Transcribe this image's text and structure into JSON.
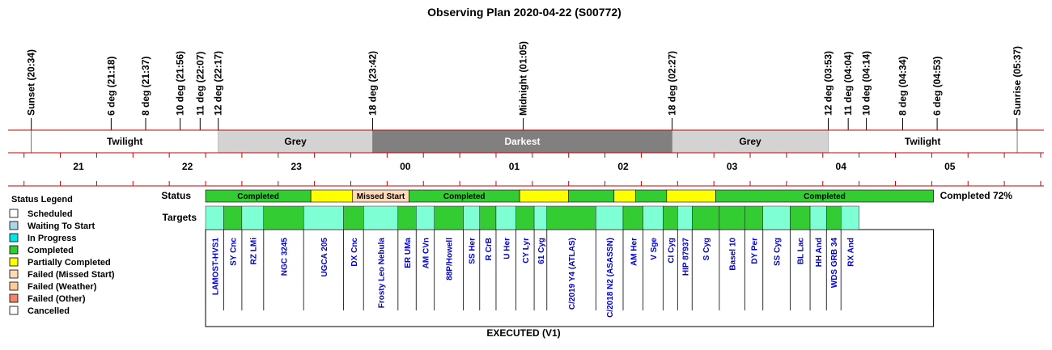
{
  "chart_data": {
    "type": "timeline",
    "title": "Observing Plan 2020-04-22 (S00772)",
    "events": [
      {
        "label": "Sunset (20:34)",
        "time": "20:34"
      },
      {
        "label": "6 deg (21:18)",
        "time": "21:18"
      },
      {
        "label": "8 deg (21:37)",
        "time": "21:37"
      },
      {
        "label": "10 deg (21:56)",
        "time": "21:56"
      },
      {
        "label": "11 deg (22:07)",
        "time": "22:07"
      },
      {
        "label": "12 deg (22:17)",
        "time": "22:17"
      },
      {
        "label": "18 deg (23:42)",
        "time": "23:42"
      },
      {
        "label": "Midnight (01:05)",
        "time": "01:05"
      },
      {
        "label": "18 deg (02:27)",
        "time": "02:27"
      },
      {
        "label": "12 deg (03:53)",
        "time": "03:53"
      },
      {
        "label": "11 deg (04:04)",
        "time": "04:04"
      },
      {
        "label": "10 deg (04:14)",
        "time": "04:14"
      },
      {
        "label": "8 deg (04:34)",
        "time": "04:34"
      },
      {
        "label": "6 deg (04:53)",
        "time": "04:53"
      },
      {
        "label": "Sunrise (05:37)",
        "time": "05:37"
      }
    ],
    "phases": [
      {
        "label": "Twilight",
        "start": "20:34",
        "end": "22:17",
        "color": "#ffffff"
      },
      {
        "label": "Grey",
        "start": "22:17",
        "end": "23:42",
        "color": "#d3d3d3"
      },
      {
        "label": "Darkest",
        "start": "23:42",
        "end": "02:27",
        "color": "#808080"
      },
      {
        "label": "Grey",
        "start": "02:27",
        "end": "03:53",
        "color": "#d3d3d3"
      },
      {
        "label": "Twilight",
        "start": "03:53",
        "end": "05:37",
        "color": "#ffffff"
      }
    ],
    "hour_ticks": [
      "21",
      "22",
      "23",
      "00",
      "01",
      "02",
      "03",
      "04",
      "05"
    ],
    "status_row_label": "Status",
    "targets_row_label": "Targets",
    "status_segments": [
      {
        "label": "Completed",
        "start": "22:10",
        "end": "23:08",
        "status": "Completed"
      },
      {
        "label": "",
        "start": "23:08",
        "end": "23:31",
        "status": "Partially Completed"
      },
      {
        "label": "Missed Start",
        "start": "23:31",
        "end": "00:02",
        "status": "Failed (Missed Start)"
      },
      {
        "label": "Completed",
        "start": "00:02",
        "end": "01:03",
        "status": "Completed"
      },
      {
        "label": "",
        "start": "01:03",
        "end": "01:30",
        "status": "Partially Completed"
      },
      {
        "label": "",
        "start": "01:30",
        "end": "01:55",
        "status": "Completed"
      },
      {
        "label": "",
        "start": "01:55",
        "end": "02:07",
        "status": "Partially Completed"
      },
      {
        "label": "",
        "start": "02:07",
        "end": "02:24",
        "status": "Completed"
      },
      {
        "label": "",
        "start": "02:24",
        "end": "02:51",
        "status": "Partially Completed"
      },
      {
        "label": "Completed",
        "start": "02:51",
        "end": "04:51",
        "status": "Completed"
      }
    ],
    "completion_text": "Completed 72%",
    "targets": [
      {
        "name": "LAMOST-HVS1",
        "start": "22:10",
        "end": "22:20",
        "status": "Waiting To Start"
      },
      {
        "name": "SY Cnc",
        "start": "22:20",
        "end": "22:30",
        "status": "Completed"
      },
      {
        "name": "RZ LMi",
        "start": "22:30",
        "end": "22:42",
        "status": "Waiting To Start"
      },
      {
        "name": "NGC 3245",
        "start": "22:42",
        "end": "23:04",
        "status": "Completed"
      },
      {
        "name": "UGCA 205",
        "start": "23:04",
        "end": "23:26",
        "status": "Waiting To Start"
      },
      {
        "name": "DX Cnc",
        "start": "23:26",
        "end": "23:37",
        "status": "Completed"
      },
      {
        "name": "Frosty Leo Nebula",
        "start": "23:37",
        "end": "23:56",
        "status": "Waiting To Start"
      },
      {
        "name": "ER UMa",
        "start": "23:56",
        "end": "00:06",
        "status": "Completed"
      },
      {
        "name": "AM CVn",
        "start": "00:06",
        "end": "00:16",
        "status": "Waiting To Start"
      },
      {
        "name": "88P/Howell",
        "start": "00:16",
        "end": "00:32",
        "status": "Completed"
      },
      {
        "name": "SS Her",
        "start": "00:32",
        "end": "00:41",
        "status": "Waiting To Start"
      },
      {
        "name": "R CrB",
        "start": "00:41",
        "end": "00:50",
        "status": "Completed"
      },
      {
        "name": "U Her",
        "start": "00:50",
        "end": "01:01",
        "status": "Waiting To Start"
      },
      {
        "name": "CY Lyr",
        "start": "01:01",
        "end": "01:11",
        "status": "Completed"
      },
      {
        "name": "61 Cyg",
        "start": "01:11",
        "end": "01:18",
        "status": "Waiting To Start"
      },
      {
        "name": "C/2019 Y4 (ATLAS)",
        "start": "01:18",
        "end": "01:45",
        "status": "Completed"
      },
      {
        "name": "C/2018 N2 (ASASSN)",
        "start": "01:45",
        "end": "02:00",
        "status": "Waiting To Start"
      },
      {
        "name": "AM Her",
        "start": "02:00",
        "end": "02:11",
        "status": "Completed"
      },
      {
        "name": "V Sge",
        "start": "02:11",
        "end": "02:22",
        "status": "Waiting To Start"
      },
      {
        "name": "CI Cyg",
        "start": "02:22",
        "end": "02:30",
        "status": "Completed"
      },
      {
        "name": "HIP 87937",
        "start": "02:30",
        "end": "02:38",
        "status": "Waiting To Start"
      },
      {
        "name": "S Cyg",
        "start": "02:38",
        "end": "02:53",
        "status": "Completed"
      },
      {
        "name": "Basel 10",
        "start": "02:53",
        "end": "03:07",
        "status": "Completed"
      },
      {
        "name": "DY Per",
        "start": "03:07",
        "end": "03:17",
        "status": "Completed"
      },
      {
        "name": "SS Cyg",
        "start": "03:17",
        "end": "03:32",
        "status": "Waiting To Start"
      },
      {
        "name": "BL Lac",
        "start": "03:32",
        "end": "03:43",
        "status": "Completed"
      },
      {
        "name": "HH And",
        "start": "03:43",
        "end": "03:52",
        "status": "Waiting To Start"
      },
      {
        "name": "WDS GRB 34",
        "start": "03:52",
        "end": "04:00",
        "status": "Completed"
      },
      {
        "name": "RX And",
        "start": "04:00",
        "end": "04:10",
        "status": "Waiting To Start"
      }
    ],
    "legend": {
      "title": "Status Legend",
      "items": [
        {
          "label": "Scheduled",
          "color": "#ffffff"
        },
        {
          "label": "Waiting To Start",
          "color": "#a8d8e8"
        },
        {
          "label": "In Progress",
          "color": "#00e5e5"
        },
        {
          "label": "Completed",
          "color": "#33cc33"
        },
        {
          "label": "Partially Completed",
          "color": "#ffff00"
        },
        {
          "label": "Failed (Missed Start)",
          "color": "#ffdab9"
        },
        {
          "label": "Failed (Weather)",
          "color": "#ffcc99"
        },
        {
          "label": "Failed (Other)",
          "color": "#f4846c"
        },
        {
          "label": "Cancelled",
          "color": "#ffffff"
        }
      ]
    },
    "footer": "EXECUTED (V1)",
    "colors": {
      "axis_line": "#cc0000",
      "completed": "#33cc33",
      "partial": "#ffff00",
      "missed": "#ffdab9",
      "waiting": "#7fffd4",
      "target_text": "#0000cc"
    }
  }
}
